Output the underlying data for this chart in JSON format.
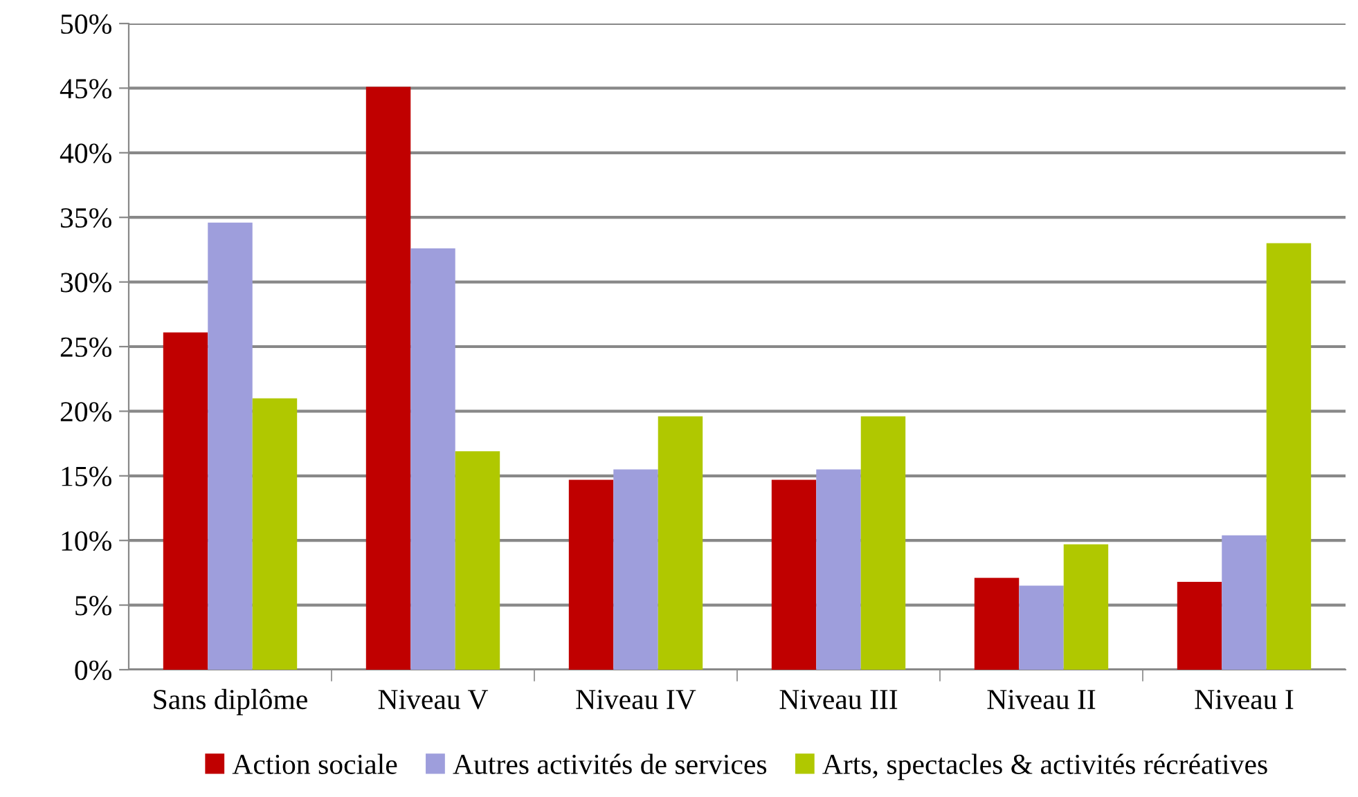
{
  "chart_data": {
    "type": "bar",
    "categories": [
      "Sans diplôme",
      "Niveau V",
      "Niveau IV",
      "Niveau III",
      "Niveau II",
      "Niveau I"
    ],
    "series": [
      {
        "name": "Action sociale",
        "color": "#c00000",
        "values": [
          26.1,
          45.1,
          14.7,
          14.7,
          7.1,
          6.8
        ]
      },
      {
        "name": "Autres activités de services",
        "color": "#9e9edc",
        "values": [
          34.6,
          32.6,
          15.5,
          15.5,
          6.5,
          10.4
        ]
      },
      {
        "name": "Arts, spectacles & activités récréatives",
        "color": "#b0c800",
        "values": [
          21.0,
          16.9,
          19.6,
          19.6,
          9.7,
          33.0
        ]
      }
    ],
    "ylim": [
      0,
      50
    ],
    "yticks": [
      {
        "value": 0,
        "label": "0%"
      },
      {
        "value": 5,
        "label": "5%"
      },
      {
        "value": 10,
        "label": "10%"
      },
      {
        "value": 15,
        "label": "15%"
      },
      {
        "value": 20,
        "label": "20%"
      },
      {
        "value": 25,
        "label": "25%"
      },
      {
        "value": 30,
        "label": "30%"
      },
      {
        "value": 35,
        "label": "35%"
      },
      {
        "value": 40,
        "label": "40%"
      },
      {
        "value": 45,
        "label": "45%"
      },
      {
        "value": 50,
        "label": "50%"
      }
    ],
    "grid": "y",
    "legend": "bottom"
  }
}
